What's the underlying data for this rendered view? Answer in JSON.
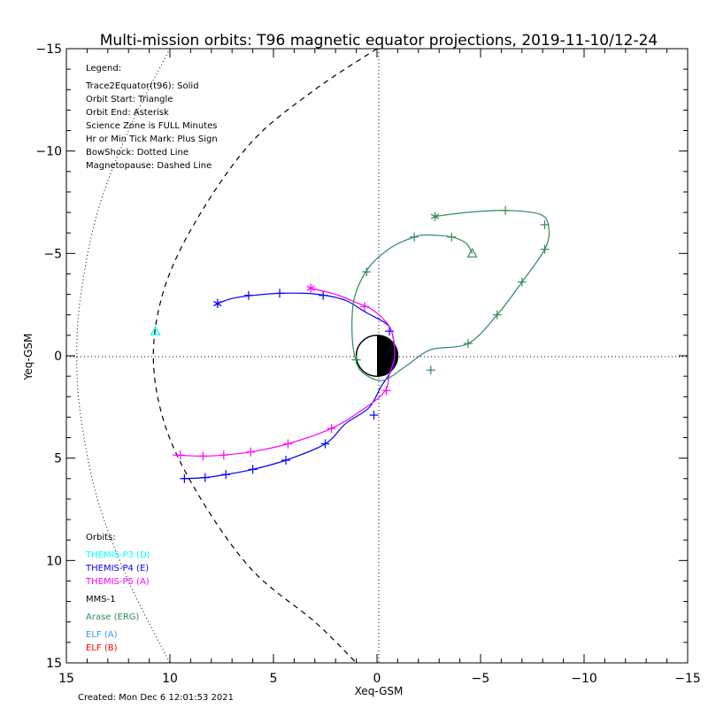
{
  "chart_data": {
    "type": "line",
    "title": "Multi-mission orbits: T96 magnetic equator projections, 2019-11-10/12-24",
    "xlabel": "Xeq-GSM",
    "ylabel": "Yeq-GSM",
    "xlim": [
      15,
      -15
    ],
    "ylim": [
      -15,
      15
    ],
    "x_ticks": [
      15,
      10,
      5,
      0,
      -5,
      -10,
      -15
    ],
    "y_ticks": [
      -15,
      -10,
      -5,
      0,
      5,
      10,
      15
    ],
    "x_tick_labels": [
      "15",
      "10",
      "5",
      "0",
      "−5",
      "−10",
      "−15"
    ],
    "y_tick_labels": [
      "−15",
      "−10",
      "−5",
      "0",
      "5",
      "10",
      "15"
    ],
    "grid": "dotted axes at x=0 and y=0",
    "legend": {
      "title": "Legend:",
      "items": [
        "Trace2Equator(t96): Solid",
        "Orbit Start: Triangle",
        "Orbit End: Asterisk",
        "Science Zone is FULL Minutes",
        "Hr or Min Tick Mark: Plus Sign",
        "BowShock: Dotted Line",
        "Magnetopause: Dashed Line"
      ]
    },
    "orbits_header": "Orbits:",
    "orbits": [
      {
        "label": "THEMIS-P3 (D)",
        "color": "#00ffff"
      },
      {
        "label": "THEMIS-P4 (E)",
        "color": "#0000ff"
      },
      {
        "label": "THEMIS-P5 (A)",
        "color": "#ff00ff"
      },
      {
        "label": "MMS-1",
        "color": "#000000"
      },
      {
        "label": "Arase (ERG)",
        "color": "#2e8b57"
      },
      {
        "label": "ELF (A)",
        "color": "#3399ff"
      },
      {
        "label": "ELF (B)",
        "color": "#ff0000"
      }
    ],
    "created": "Created: Mon Dec  6 12:01:53 2021",
    "earth": {
      "center": [
        0,
        0
      ],
      "radius": 1
    },
    "bow_shock": {
      "style": "dotted",
      "points": [
        [
          10,
          -15
        ],
        [
          12,
          -11
        ],
        [
          13.5,
          -7
        ],
        [
          14.3,
          -3
        ],
        [
          14.5,
          0
        ],
        [
          14.3,
          3
        ],
        [
          13.5,
          7
        ],
        [
          12,
          11
        ],
        [
          10,
          15
        ]
      ]
    },
    "magnetopause": {
      "style": "dashed",
      "points": [
        [
          0,
          -15
        ],
        [
          3,
          -13
        ],
        [
          6,
          -10.5
        ],
        [
          8.5,
          -7
        ],
        [
          10.2,
          -3.5
        ],
        [
          10.8,
          0
        ],
        [
          10.2,
          3.5
        ],
        [
          8.5,
          7
        ],
        [
          6,
          10.5
        ],
        [
          3,
          13
        ],
        [
          1,
          15
        ]
      ]
    },
    "series": [
      {
        "name": "THEMIS-P3 (D)",
        "color": "#00ffff",
        "points": [
          [
            10.7,
            -1.2
          ]
        ],
        "start": [
          10.7,
          -1.2
        ],
        "end": null,
        "ticks": []
      },
      {
        "name": "THEMIS-P4 (E)",
        "color": "#0000ff",
        "points": [
          [
            7.7,
            -2.55
          ],
          [
            7,
            -2.8
          ],
          [
            6,
            -2.95
          ],
          [
            4.7,
            -3.05
          ],
          [
            3.5,
            -3.05
          ],
          [
            2.5,
            -2.95
          ],
          [
            1.5,
            -2.7
          ],
          [
            0.5,
            -2.1
          ],
          [
            -0.4,
            -1.6
          ],
          [
            -0.7,
            -1.2
          ],
          [
            -0.85,
            -0.3
          ],
          [
            -0.75,
            0.6
          ],
          [
            -0.2,
            1.5
          ],
          [
            0.4,
            2.55
          ],
          [
            1.5,
            3.3
          ],
          [
            2.5,
            4.3
          ],
          [
            4.4,
            5.1
          ],
          [
            6,
            5.55
          ],
          [
            7.3,
            5.8
          ],
          [
            8.3,
            5.95
          ],
          [
            9.3,
            6.0
          ],
          [
            9.4,
            6.0
          ]
        ],
        "start": null,
        "end": [
          7.7,
          -2.55
        ],
        "ticks": [
          [
            6.2,
            -2.95
          ],
          [
            4.7,
            -3.05
          ],
          [
            2.6,
            -2.95
          ],
          [
            -0.6,
            -1.2
          ],
          [
            0.15,
            2.9
          ],
          [
            2.5,
            4.3
          ],
          [
            4.4,
            5.1
          ],
          [
            6,
            5.55
          ],
          [
            7.3,
            5.8
          ],
          [
            8.3,
            5.95
          ],
          [
            9.3,
            6.0
          ]
        ]
      },
      {
        "name": "THEMIS-P5 (A)",
        "color": "#ff00ff",
        "points": [
          [
            3.2,
            -3.3
          ],
          [
            2,
            -3.0
          ],
          [
            1,
            -2.6
          ],
          [
            0.3,
            -2.3
          ],
          [
            -0.3,
            -1.8
          ],
          [
            -0.7,
            -1.2
          ],
          [
            -0.85,
            0
          ],
          [
            -0.6,
            0.9
          ],
          [
            -0.4,
            1.7
          ],
          [
            0.5,
            2.5
          ],
          [
            2.2,
            3.55
          ],
          [
            4.3,
            4.3
          ],
          [
            6.1,
            4.7
          ],
          [
            7.4,
            4.85
          ],
          [
            8.4,
            4.9
          ],
          [
            9.8,
            4.85
          ],
          [
            9.5,
            4.85
          ]
        ],
        "start": null,
        "end": [
          3.2,
          -3.3
        ],
        "ticks": [
          [
            0.6,
            -2.4
          ],
          [
            -0.45,
            1.7
          ],
          [
            2.2,
            3.55
          ],
          [
            4.3,
            4.3
          ],
          [
            6.1,
            4.7
          ],
          [
            7.4,
            4.85
          ],
          [
            8.4,
            4.9
          ],
          [
            9.5,
            4.85
          ]
        ]
      },
      {
        "name": "Arase (ERG)",
        "color": "#2e8b57",
        "points": [
          [
            -4.6,
            -5.0
          ],
          [
            -4.3,
            -5.5
          ],
          [
            -3.6,
            -5.8
          ],
          [
            -2.4,
            -5.9
          ],
          [
            -1.8,
            -5.8
          ],
          [
            -0.7,
            -5.3
          ],
          [
            0.4,
            -4.3
          ],
          [
            1.1,
            -2.8
          ],
          [
            1.2,
            -1.0
          ],
          [
            1.0,
            0.3
          ],
          [
            0.6,
            0.9
          ],
          [
            -0.3,
            1.2
          ],
          [
            -1.4,
            0.5
          ],
          [
            -2.6,
            -0.3
          ],
          [
            -4.4,
            -0.6
          ],
          [
            -5.8,
            -2.0
          ],
          [
            -7.0,
            -3.6
          ],
          [
            -8.1,
            -5.2
          ],
          [
            -8.3,
            -6.2
          ],
          [
            -7.9,
            -6.9
          ],
          [
            -6.2,
            -7.1
          ],
          [
            -4.3,
            -7.0
          ],
          [
            -2.8,
            -6.8
          ]
        ],
        "start": [
          -4.6,
          -5.0
        ],
        "end": [
          -2.8,
          -6.8
        ],
        "ticks": [
          [
            -3.6,
            -5.8
          ],
          [
            -1.8,
            -5.8
          ],
          [
            0.5,
            -4.1
          ],
          [
            1.0,
            0.2
          ],
          [
            -2.6,
            0.7
          ],
          [
            -4.4,
            -0.6
          ],
          [
            -5.8,
            -2.0
          ],
          [
            -7.0,
            -3.6
          ],
          [
            -8.1,
            -5.2
          ],
          [
            -8.1,
            -6.4
          ],
          [
            -6.2,
            -7.1
          ]
        ]
      }
    ]
  }
}
